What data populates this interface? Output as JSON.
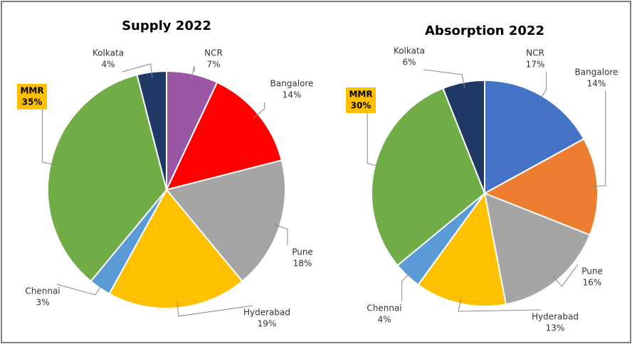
{
  "chart_data": [
    {
      "type": "pie",
      "title": "Supply 2022",
      "categories": [
        "NCR",
        "Bangalore",
        "Pune",
        "Hyderabad",
        "Chennai",
        "MMR",
        "Kolkata"
      ],
      "values": [
        7,
        14,
        18,
        19,
        3,
        35,
        4
      ],
      "value_labels": [
        "7%",
        "14%",
        "18%",
        "19%",
        "3%",
        "35%",
        "4%"
      ],
      "colors": [
        "#9b57a3",
        "#ff0000",
        "#a5a5a5",
        "#ffc000",
        "#5b9bd5",
        "#70ad47",
        "#203864"
      ]
    },
    {
      "type": "pie",
      "title": "Absorption 2022",
      "categories": [
        "NCR",
        "Bangalore",
        "Pune",
        "Hyderabad",
        "Chennai",
        "MMR",
        "Kolkata"
      ],
      "values": [
        17,
        14,
        16,
        13,
        4,
        30,
        6
      ],
      "value_labels": [
        "17%",
        "14%",
        "16%",
        "13%",
        "4%",
        "30%",
        "6%"
      ],
      "colors": [
        "#4472c4",
        "#ed7d31",
        "#a5a5a5",
        "#ffc000",
        "#5b9bd5",
        "#70ad47",
        "#203864"
      ]
    }
  ]
}
